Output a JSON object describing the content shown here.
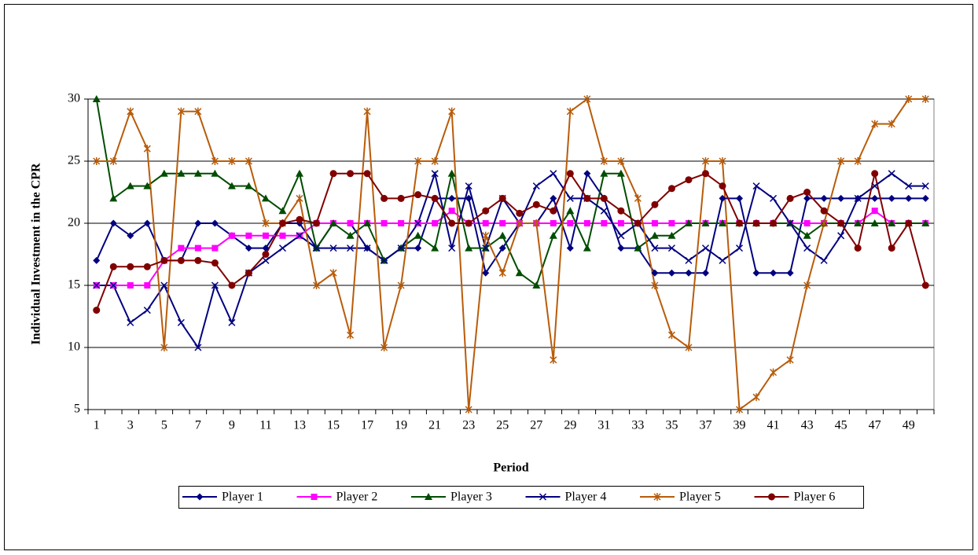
{
  "chart_data": {
    "type": "line",
    "y_label": "Individual Investment in the CPR",
    "x_label": "Period",
    "categories": [
      1,
      null,
      3,
      null,
      5,
      null,
      7,
      null,
      9,
      null,
      11,
      null,
      13,
      null,
      15,
      null,
      17,
      null,
      19,
      null,
      21,
      null,
      23,
      null,
      25,
      null,
      27,
      null,
      29,
      null,
      31,
      null,
      33,
      null,
      35,
      null,
      37,
      null,
      39,
      null,
      41,
      null,
      43,
      null,
      45,
      null,
      47,
      null,
      49,
      null
    ],
    "ylim": [
      5,
      30
    ],
    "yticks": [
      5,
      10,
      15,
      20,
      25,
      30
    ],
    "grid": true,
    "legend": "bottom",
    "series": [
      {
        "name": "Player 1",
        "color": "#000080",
        "marker": "diamond",
        "values": [
          17,
          20,
          19,
          20,
          17,
          17,
          20,
          20,
          19,
          18,
          18,
          20,
          20,
          18,
          20,
          20,
          18,
          17,
          18,
          18,
          22,
          22,
          22,
          16,
          18,
          20,
          20,
          22,
          18,
          24,
          22,
          18,
          18,
          16,
          16,
          16,
          16,
          22,
          22,
          16,
          16,
          16,
          22,
          22,
          22,
          22,
          22,
          22,
          22,
          22
        ]
      },
      {
        "name": "Player 2",
        "color": "#ff00ff",
        "marker": "square",
        "values": [
          15,
          15,
          15,
          15,
          17,
          18,
          18,
          18,
          19,
          19,
          19,
          19,
          19,
          20,
          20,
          20,
          20,
          20,
          20,
          20,
          20,
          21,
          20,
          20,
          20,
          20,
          20,
          20,
          20,
          20,
          20,
          20,
          20,
          20,
          20,
          20,
          20,
          20,
          20,
          20,
          20,
          20,
          20,
          20,
          20,
          20,
          21,
          20,
          20,
          20
        ]
      },
      {
        "name": "Player 3",
        "color": "#004d00",
        "marker": "triangle",
        "values": [
          30,
          22,
          23,
          23,
          24,
          24,
          24,
          24,
          23,
          23,
          22,
          21,
          24,
          18,
          20,
          19,
          20,
          17,
          18,
          19,
          18,
          24,
          18,
          18,
          19,
          16,
          15,
          19,
          21,
          18,
          24,
          24,
          18,
          19,
          19,
          20,
          20,
          20,
          20,
          20,
          20,
          20,
          19,
          20,
          20,
          20,
          20,
          20,
          20,
          20
        ]
      },
      {
        "name": "Player 4",
        "color": "#000080",
        "marker": "x",
        "values": [
          15,
          15,
          12,
          13,
          15,
          12,
          10,
          15,
          12,
          16,
          17,
          18,
          19,
          18,
          18,
          18,
          18,
          17,
          18,
          20,
          24,
          18,
          23,
          18,
          22,
          20,
          23,
          24,
          22,
          22,
          21,
          19,
          20,
          18,
          18,
          17,
          18,
          17,
          18,
          23,
          22,
          20,
          18,
          17,
          19,
          22,
          23,
          24,
          23,
          23
        ]
      },
      {
        "name": "Player 5",
        "color": "#b85c0a",
        "marker": "star",
        "values": [
          25,
          25,
          29,
          26,
          10,
          29,
          29,
          25,
          25,
          25,
          20,
          20,
          22,
          15,
          16,
          11,
          29,
          10,
          15,
          25,
          25,
          29,
          5,
          19,
          16,
          20,
          20,
          9,
          29,
          30,
          25,
          25,
          22,
          15,
          11,
          10,
          25,
          25,
          5,
          6,
          8,
          9,
          15,
          20,
          25,
          25,
          28,
          28,
          30,
          30
        ]
      },
      {
        "name": "Player 6",
        "color": "#800000",
        "marker": "circle",
        "values": [
          13,
          16.5,
          16.5,
          16.5,
          17,
          17,
          17,
          16.8,
          15,
          16,
          17.5,
          20,
          20.3,
          20,
          24,
          24,
          24,
          22,
          22,
          22.3,
          22,
          20,
          20,
          21,
          22,
          20.8,
          21.5,
          21,
          24,
          22,
          22,
          21,
          20,
          21.5,
          22.8,
          23.5,
          24,
          23,
          20,
          20,
          20,
          22,
          22.5,
          21,
          20,
          18,
          24,
          18,
          20,
          15
        ]
      }
    ]
  }
}
